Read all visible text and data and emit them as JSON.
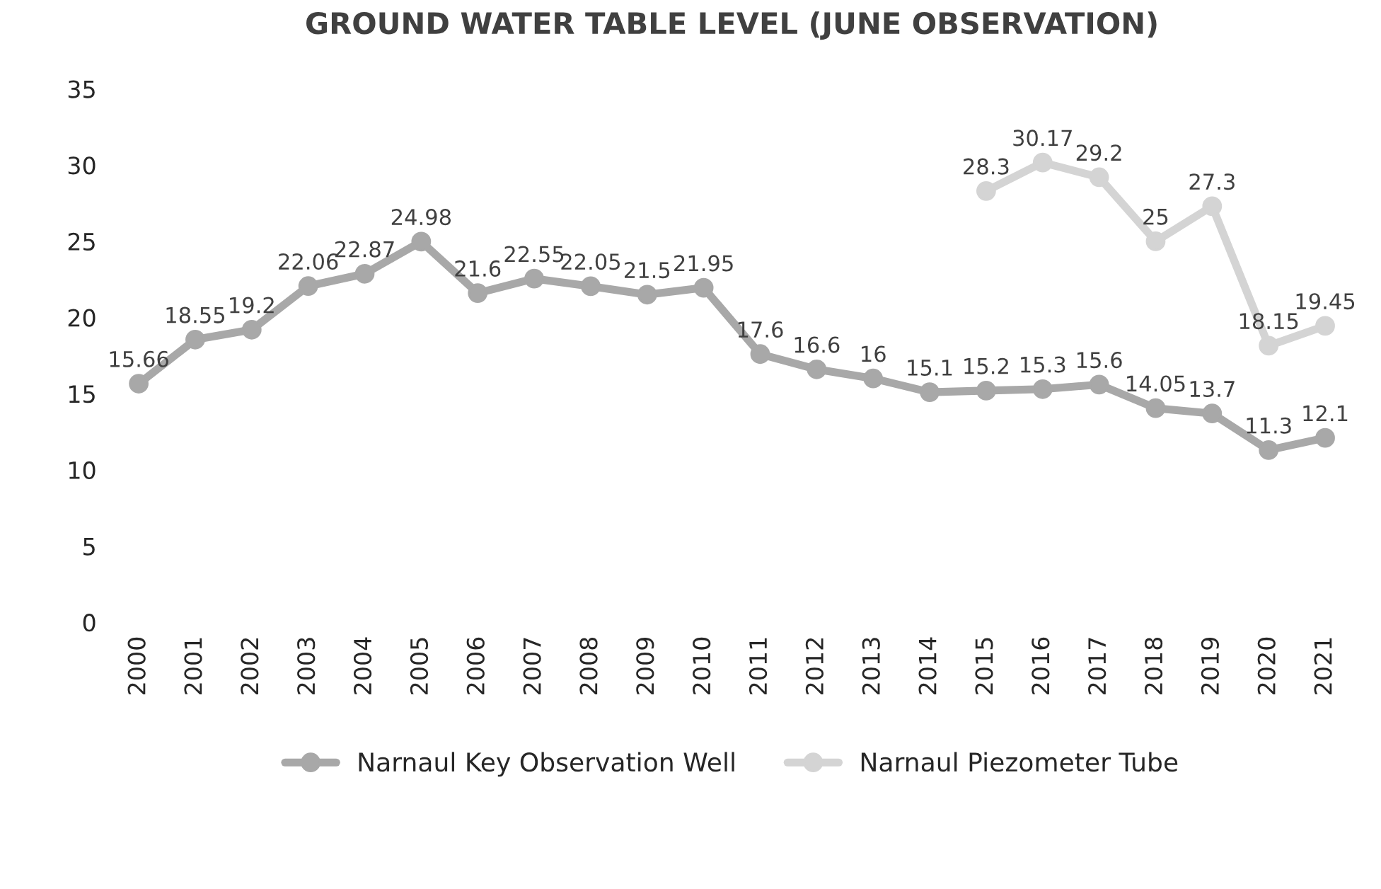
{
  "chart_data": {
    "type": "line",
    "title": "GROUND WATER TABLE LEVEL (JUNE OBSERVATION)",
    "categories": [
      "2000",
      "2001",
      "2002",
      "2003",
      "2004",
      "2005",
      "2006",
      "2007",
      "2008",
      "2009",
      "2010",
      "2011",
      "2012",
      "2013",
      "2014",
      "2015",
      "2016",
      "2017",
      "2018",
      "2019",
      "2020",
      "2021"
    ],
    "series": [
      {
        "name": "Narnaul Key Observation Well",
        "color": "#a8a8a8",
        "values": [
          15.66,
          18.55,
          19.2,
          22.06,
          22.87,
          24.98,
          21.6,
          22.55,
          22.05,
          21.5,
          21.95,
          17.6,
          16.6,
          16,
          15.1,
          15.2,
          15.3,
          15.6,
          14.05,
          13.7,
          11.3,
          12.1
        ]
      },
      {
        "name": "Narnaul Piezometer Tube",
        "color": "#d4d4d4",
        "values": [
          null,
          null,
          null,
          null,
          null,
          null,
          null,
          null,
          null,
          null,
          null,
          null,
          null,
          null,
          null,
          28.3,
          30.17,
          29.2,
          25,
          27.3,
          18.15,
          19.45
        ]
      }
    ],
    "ylim": [
      0,
      35
    ],
    "yticks": [
      0,
      5,
      10,
      15,
      20,
      25,
      30,
      35
    ],
    "grid": false,
    "legend": "bottom",
    "marker": "circle",
    "line_style": "solid",
    "data_labels": true
  }
}
